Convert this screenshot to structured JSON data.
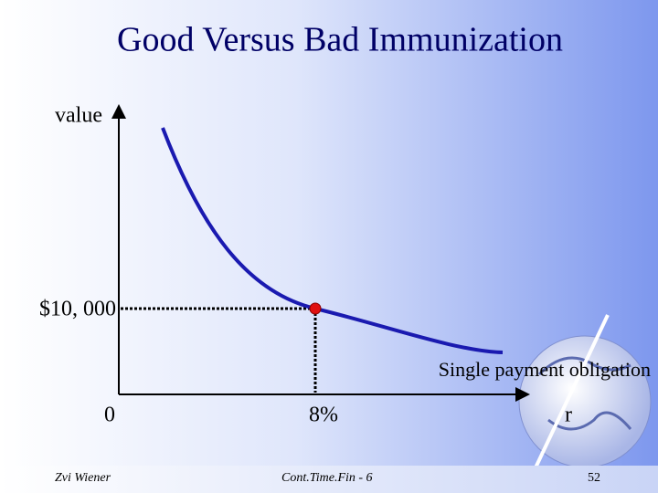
{
  "header": {
    "title": "Good Versus Bad Immunization"
  },
  "diagram": {
    "y_axis_label": "value",
    "y_marker_label": "$10, 000",
    "curve_label": "Single payment obligation",
    "origin_label": "0",
    "x_marker_label": "8%",
    "x_axis_label": "r"
  },
  "footer": {
    "author": "Zvi Wiener",
    "course": "Cont.Time.Fin - 6",
    "page": "52"
  }
}
